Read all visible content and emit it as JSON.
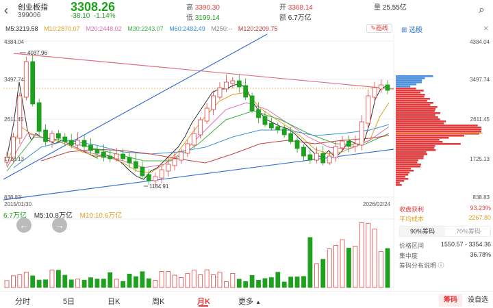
{
  "header": {
    "back_icon": "chevron-left-icon",
    "name": "创业板指",
    "code": "399006",
    "price": "3308.26",
    "change": "-38.10",
    "change_pct": "-1.14%",
    "high_label": "高",
    "high": "3390.30",
    "low_label": "低",
    "low": "3199.14",
    "open_label": "开",
    "open": "3368.14",
    "amount_label": "额",
    "amount": "6.7万亿",
    "volume_label": "量",
    "volume": "25.55亿",
    "search_icon": "search-icon"
  },
  "ma": {
    "m5": "M5:3219.58",
    "m10": "M10:2870.07",
    "m20": "M20:2448.02",
    "m30": "M30:2243.07",
    "m60": "M60:2482.49",
    "m250": "M250:--",
    "m120": "M120:2209.75",
    "draw_line": "画线",
    "select_stock": "选股"
  },
  "colors": {
    "up": "#e33b3b",
    "down": "#1ea11e",
    "m5": "#333333",
    "m10": "#e0a020",
    "m20": "#e070b0",
    "m30": "#40b040",
    "m60": "#3a8fd8",
    "m120": "#c04040"
  },
  "axis": {
    "y_top": "4384.04",
    "y_2": "3497.74",
    "y_3": "2611.45",
    "y_4": "1725.13",
    "y_bottom": "838.83",
    "date_start": "2015/01/30",
    "date_end": "2026/02/24",
    "ann_high": "4037.96",
    "ann_low": "1184.91"
  },
  "volume": {
    "value": "6.7万亿",
    "m5": "M5:10.8万亿",
    "m10": "M10:10.6万亿"
  },
  "chips": {
    "y_top": "4384.04",
    "y_2": "3497.74",
    "y_3": "2611.45",
    "y_4": "1725.13",
    "y_bottom": "838.83",
    "profit_label": "收盘获利",
    "profit": "93.23%",
    "cost_label": "平均成本",
    "cost": "2267.80",
    "tab_90": "90%筹码",
    "tab_70": "70%筹码",
    "range_label": "价格区间",
    "range": "1550.57 - 3354.36",
    "concentration_label": "集中度",
    "concentration": "36.78%",
    "explain": "筹码分布说明"
  },
  "bottom": {
    "tabs": [
      "分时",
      "5日",
      "日K",
      "周K",
      "月K",
      "更多"
    ],
    "active": "月K",
    "chip_btn": "筹码",
    "settings_btn": "设自选"
  }
}
